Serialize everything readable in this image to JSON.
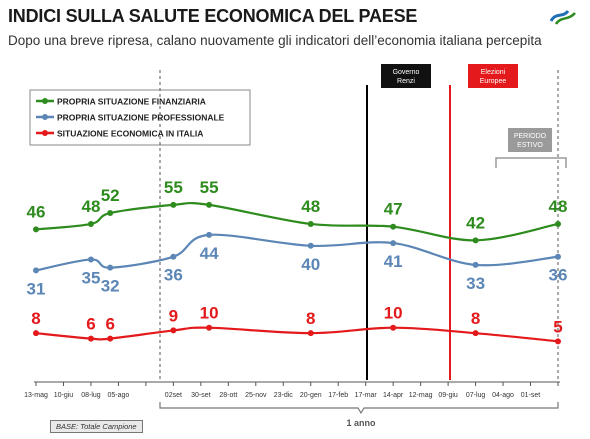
{
  "header": {
    "title": "INDICI SULLA SALUTE ECONOMICA DEL PAESE",
    "subtitle": "Dopo una breve ripresa, calano nuovamente gli indicatori dell’economia italiana percepita"
  },
  "annotations": {
    "governo": [
      "Governo",
      "Renzi"
    ],
    "elezioni": [
      "Elezioni",
      "Europee"
    ],
    "periodo": [
      "PERIODO",
      "ESTIVO"
    ],
    "one_year": "1 anno"
  },
  "footer": {
    "base": "BASE: Totale Campione"
  },
  "colors": {
    "green": "#2e8b1e",
    "blue": "#5b86b5",
    "red": "#e3191b"
  },
  "chart_data": {
    "type": "line",
    "title": "INDICI SULLA SALUTE ECONOMICA DEL PAESE",
    "categories": [
      "13-mag",
      "10-giu",
      "08-lug",
      "05-ago",
      "02set",
      "30-set",
      "28-ott",
      "25-nov",
      "23-dic",
      "20-gen",
      "17-feb",
      "17-mar",
      "14-apr",
      "12-mag",
      "09-giu",
      "07-lug",
      "04-ago",
      "01-set"
    ],
    "series": [
      {
        "name": "PROPRIA SITUAZIONE FINANZIARIA",
        "color": "#2e8b1e",
        "x": [
          0,
          2,
          2.7,
          5,
          6.3,
          10,
          13,
          16,
          19
        ],
        "values": [
          46,
          48,
          52,
          55,
          55,
          48,
          47,
          42,
          48
        ]
      },
      {
        "name": "PROPRIA SITUAZIONE PROFESSIONALE",
        "color": "#5b86b5",
        "x": [
          0,
          2,
          2.7,
          5,
          6.3,
          10,
          13,
          16,
          19
        ],
        "values": [
          31,
          35,
          32,
          36,
          44,
          40,
          41,
          33,
          36
        ]
      },
      {
        "name": "SITUAZIONE ECONOMICA IN ITALIA",
        "color": "#e3191b",
        "x": [
          0,
          2,
          2.7,
          5,
          6.3,
          10,
          13,
          16,
          19
        ],
        "values": [
          8,
          6,
          6,
          9,
          10,
          8,
          10,
          8,
          5
        ]
      }
    ],
    "legend": "top-left",
    "grid": false
  }
}
